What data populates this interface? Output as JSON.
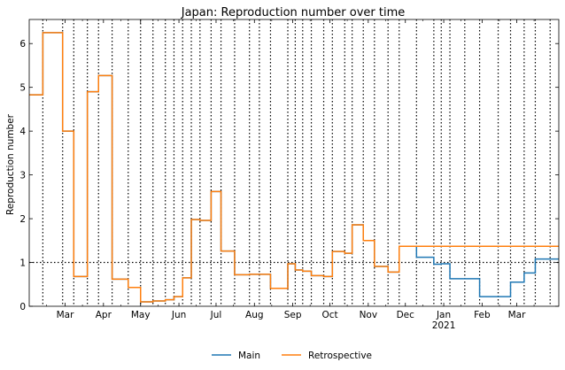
{
  "chart_data": {
    "type": "line",
    "title": "Japan: Reproduction number over time",
    "xlabel": "",
    "ylabel": "Reproduction number",
    "x_axis_type": "date",
    "x_range": [
      "2020-02-01",
      "2021-04-04"
    ],
    "ylim": [
      0,
      6.55
    ],
    "y_ticks": [
      0,
      1,
      2,
      3,
      4,
      5,
      6
    ],
    "x_ticks": [
      {
        "date": "2020-03-01",
        "label": "Mar"
      },
      {
        "date": "2020-04-01",
        "label": "Apr"
      },
      {
        "date": "2020-05-01",
        "label": "May"
      },
      {
        "date": "2020-06-01",
        "label": "Jun"
      },
      {
        "date": "2020-07-01",
        "label": "Jul"
      },
      {
        "date": "2020-08-01",
        "label": "Aug"
      },
      {
        "date": "2020-09-01",
        "label": "Sep"
      },
      {
        "date": "2020-10-01",
        "label": "Oct"
      },
      {
        "date": "2020-11-01",
        "label": "Nov"
      },
      {
        "date": "2020-12-01",
        "label": "Dec"
      },
      {
        "date": "2021-01-01",
        "label": "Jan",
        "sublabel": "2021"
      },
      {
        "date": "2021-02-01",
        "label": "Feb"
      },
      {
        "date": "2021-03-01",
        "label": "Mar"
      }
    ],
    "grid": false,
    "reference_line": {
      "y": 1,
      "style": "dotted"
    },
    "changepoints": [
      "2020-02-12",
      "2020-02-28",
      "2020-03-08",
      "2020-03-19",
      "2020-03-28",
      "2020-04-08",
      "2020-04-21",
      "2020-05-01",
      "2020-05-11",
      "2020-05-21",
      "2020-05-28",
      "2020-06-04",
      "2020-06-11",
      "2020-06-18",
      "2020-06-27",
      "2020-07-05",
      "2020-07-16",
      "2020-07-28",
      "2020-08-05",
      "2020-08-14",
      "2020-08-28",
      "2020-09-03",
      "2020-09-09",
      "2020-09-16",
      "2020-09-26",
      "2020-10-03",
      "2020-10-13",
      "2020-10-19",
      "2020-10-28",
      "2020-11-06",
      "2020-11-17",
      "2020-11-26",
      "2020-12-10",
      "2020-12-24",
      "2020-12-30",
      "2021-01-06",
      "2021-01-18",
      "2021-01-30",
      "2021-02-14",
      "2021-02-24",
      "2021-03-07",
      "2021-03-16",
      "2021-03-28"
    ],
    "legend": {
      "placement": "bottom-center",
      "entries": [
        "Main",
        "Retrospective"
      ]
    },
    "series": [
      {
        "name": "Main",
        "color": "#1f77b4",
        "x": [
          "2020-02-01",
          "2020-02-12",
          "2020-02-28",
          "2020-03-08",
          "2020-03-19",
          "2020-03-28",
          "2020-04-08",
          "2020-04-21",
          "2020-05-01",
          "2020-05-11",
          "2020-05-21",
          "2020-05-28",
          "2020-06-04",
          "2020-06-11",
          "2020-06-18",
          "2020-06-27",
          "2020-07-05",
          "2020-07-16",
          "2020-07-28",
          "2020-08-05",
          "2020-08-14",
          "2020-08-28",
          "2020-09-03",
          "2020-09-09",
          "2020-09-16",
          "2020-09-26",
          "2020-10-03",
          "2020-10-13",
          "2020-10-19",
          "2020-10-28",
          "2020-11-06",
          "2020-11-17",
          "2020-11-26",
          "2020-12-10",
          "2020-12-24",
          "2020-12-30",
          "2021-01-06",
          "2021-01-18",
          "2021-01-30",
          "2021-02-14",
          "2021-02-24",
          "2021-03-07",
          "2021-03-16",
          "2021-03-28",
          "2021-04-04"
        ],
        "y": [
          4.83,
          6.25,
          4.0,
          0.68,
          4.9,
          5.27,
          0.62,
          0.43,
          0.1,
          0.12,
          0.15,
          0.22,
          0.65,
          1.98,
          1.96,
          2.62,
          1.26,
          0.72,
          0.73,
          0.73,
          0.41,
          0.97,
          0.83,
          0.8,
          0.7,
          0.68,
          1.25,
          1.21,
          1.86,
          1.5,
          0.91,
          0.78,
          1.37,
          1.12,
          0.96,
          0.97,
          0.63,
          0.63,
          0.22,
          0.22,
          0.55,
          0.76,
          1.08,
          1.08,
          1.08
        ]
      },
      {
        "name": "Retrospective",
        "color": "#ff7f0e",
        "x": [
          "2020-02-01",
          "2020-02-12",
          "2020-02-28",
          "2020-03-08",
          "2020-03-19",
          "2020-03-28",
          "2020-04-08",
          "2020-04-21",
          "2020-05-01",
          "2020-05-11",
          "2020-05-21",
          "2020-05-28",
          "2020-06-04",
          "2020-06-11",
          "2020-06-18",
          "2020-06-27",
          "2020-07-05",
          "2020-07-16",
          "2020-07-28",
          "2020-08-05",
          "2020-08-14",
          "2020-08-28",
          "2020-09-03",
          "2020-09-09",
          "2020-09-16",
          "2020-09-26",
          "2020-10-03",
          "2020-10-13",
          "2020-10-19",
          "2020-10-28",
          "2020-11-06",
          "2020-11-17",
          "2020-11-26",
          "2020-12-10",
          "2021-04-04"
        ],
        "y": [
          4.83,
          6.25,
          4.0,
          0.68,
          4.9,
          5.27,
          0.62,
          0.43,
          0.1,
          0.12,
          0.15,
          0.22,
          0.65,
          1.98,
          1.96,
          2.62,
          1.26,
          0.72,
          0.73,
          0.73,
          0.41,
          0.97,
          0.83,
          0.8,
          0.7,
          0.68,
          1.25,
          1.21,
          1.86,
          1.5,
          0.91,
          0.78,
          1.37,
          1.37,
          1.37
        ]
      }
    ]
  }
}
